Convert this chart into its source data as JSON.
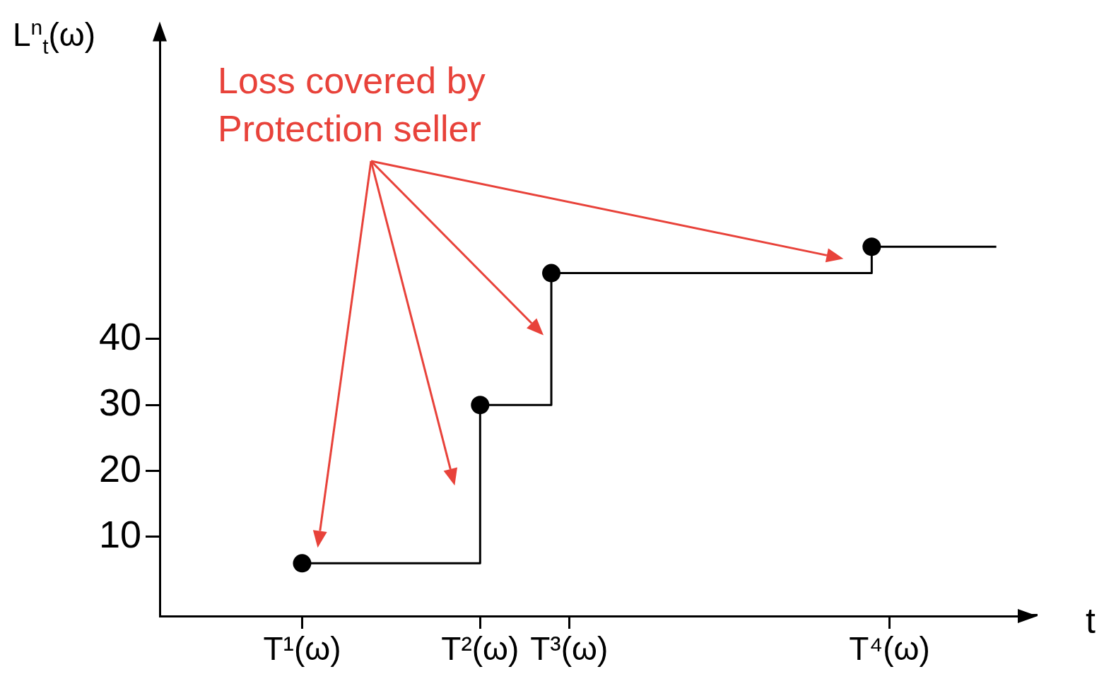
{
  "chart_data": {
    "type": "step",
    "ylabel": "L$^{n}$$_{t}$(ω)",
    "xlabel": "t",
    "annotations": [
      "Loss covered by Protection seller"
    ],
    "categories": [
      null,
      null,
      null,
      null,
      null,
      null,
      null,
      null,
      "T¹(ω)",
      null,
      null,
      null,
      null,
      null,
      null,
      null,
      null,
      null,
      "T²(ω)",
      null,
      null,
      null,
      null,
      "T³(ω)",
      null,
      null,
      null,
      null,
      null,
      null,
      null,
      null,
      null,
      null,
      null,
      null,
      null,
      null,
      null,
      null,
      null,
      "T⁴(ω)",
      null,
      null,
      null,
      null,
      null,
      null,
      null,
      null
    ],
    "series": [
      {
        "color": "#000000",
        "values": [
          null,
          null,
          null,
          null,
          null,
          null,
          null,
          null,
          6,
          null,
          null,
          null,
          null,
          null,
          null,
          null,
          null,
          null,
          30,
          null,
          null,
          null,
          50,
          null,
          null,
          null,
          null,
          null,
          null,
          null,
          null,
          null,
          null,
          null,
          null,
          null,
          null,
          null,
          null,
          null,
          54,
          null,
          null,
          null,
          null,
          null,
          null,
          54,
          null,
          null
        ]
      }
    ],
    "ylim": [
      -2,
      87.3
    ],
    "yticks": [
      10,
      20,
      30,
      40
    ],
    "marker": "circle"
  }
}
